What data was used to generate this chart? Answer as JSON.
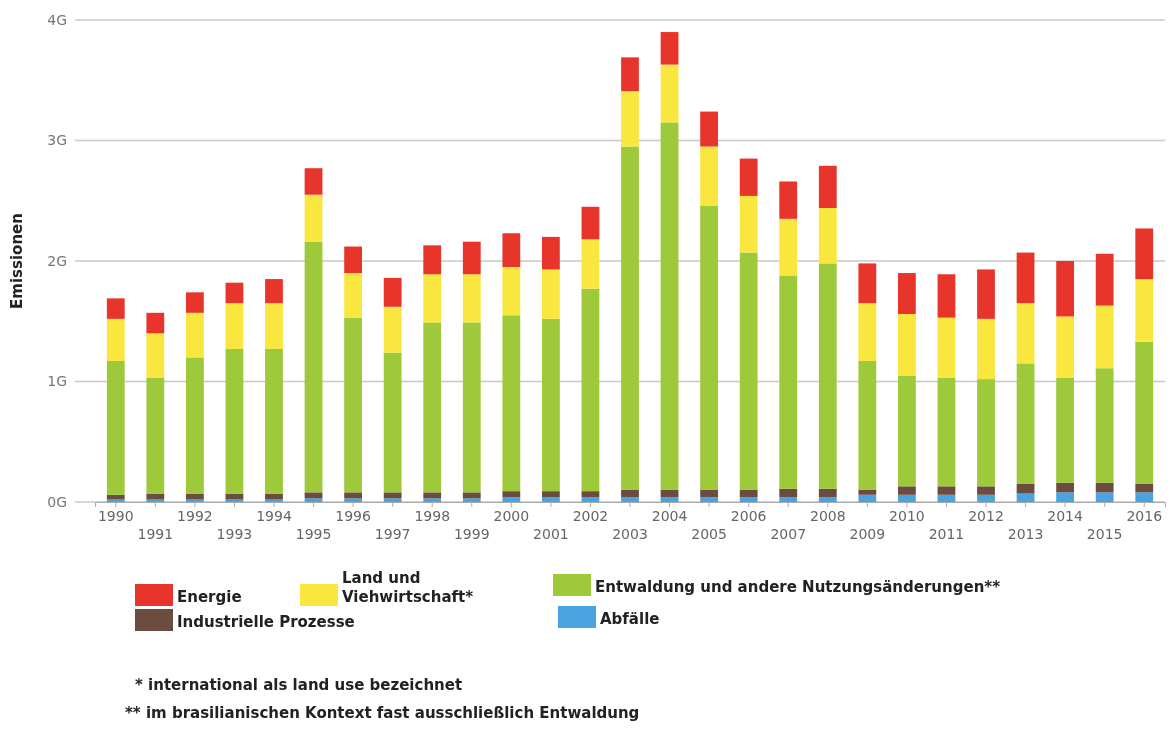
{
  "chart_data": {
    "type": "bar",
    "stacked": true,
    "ylabel": "Emissionen",
    "categories": [
      "1990",
      "1991",
      "1992",
      "1993",
      "1994",
      "1995",
      "1996",
      "1997",
      "1998",
      "1999",
      "2000",
      "2001",
      "2002",
      "2003",
      "2004",
      "2005",
      "2006",
      "2007",
      "2008",
      "2009",
      "2010",
      "2011",
      "2012",
      "2013",
      "2014",
      "2015",
      "2016"
    ],
    "ylim": [
      0,
      4
    ],
    "yticks": [
      {
        "value": 0,
        "label": "0G"
      },
      {
        "value": 1,
        "label": "1G"
      },
      {
        "value": 2,
        "label": "2G"
      },
      {
        "value": 3,
        "label": "3G"
      },
      {
        "value": 4,
        "label": "4G"
      }
    ],
    "grid": "y",
    "legend": "bottom",
    "series": [
      {
        "name": "Abfälle",
        "color": "#4aa3df",
        "values": [
          0.02,
          0.02,
          0.02,
          0.02,
          0.02,
          0.03,
          0.03,
          0.03,
          0.03,
          0.03,
          0.04,
          0.04,
          0.04,
          0.04,
          0.04,
          0.04,
          0.04,
          0.04,
          0.04,
          0.06,
          0.06,
          0.06,
          0.06,
          0.07,
          0.08,
          0.08,
          0.08
        ]
      },
      {
        "name": "Industrielle Prozesse",
        "color": "#6b4c3f",
        "values": [
          0.04,
          0.05,
          0.05,
          0.05,
          0.05,
          0.05,
          0.05,
          0.05,
          0.05,
          0.05,
          0.05,
          0.05,
          0.05,
          0.06,
          0.06,
          0.06,
          0.06,
          0.07,
          0.07,
          0.04,
          0.07,
          0.07,
          0.07,
          0.08,
          0.08,
          0.08,
          0.07
        ]
      },
      {
        "name": "Entwaldung und andere Nutzungsänderungen**",
        "color": "#9dc93b",
        "values": [
          1.11,
          0.96,
          1.13,
          1.2,
          1.2,
          2.08,
          1.45,
          1.16,
          1.41,
          1.41,
          1.46,
          1.43,
          1.68,
          2.85,
          3.05,
          2.36,
          1.97,
          1.77,
          1.87,
          1.07,
          0.92,
          0.9,
          0.89,
          1.0,
          0.87,
          0.95,
          1.18
        ]
      },
      {
        "name": "Land und\nViehwirtschaft*",
        "color": "#f9e740",
        "values": [
          0.35,
          0.37,
          0.37,
          0.38,
          0.38,
          0.39,
          0.37,
          0.38,
          0.4,
          0.4,
          0.4,
          0.41,
          0.41,
          0.46,
          0.48,
          0.49,
          0.47,
          0.47,
          0.46,
          0.48,
          0.51,
          0.5,
          0.5,
          0.5,
          0.51,
          0.52,
          0.52
        ]
      },
      {
        "name": "Energie",
        "color": "#e8352c",
        "values": [
          0.17,
          0.17,
          0.17,
          0.17,
          0.2,
          0.22,
          0.22,
          0.24,
          0.24,
          0.27,
          0.28,
          0.27,
          0.27,
          0.28,
          0.27,
          0.29,
          0.31,
          0.31,
          0.35,
          0.33,
          0.34,
          0.36,
          0.41,
          0.42,
          0.46,
          0.43,
          0.42
        ]
      }
    ],
    "annotations": [
      "* international als land use bezeichnet",
      "** im brasilianischen Kontext fast ausschließlich Entwaldung"
    ]
  }
}
